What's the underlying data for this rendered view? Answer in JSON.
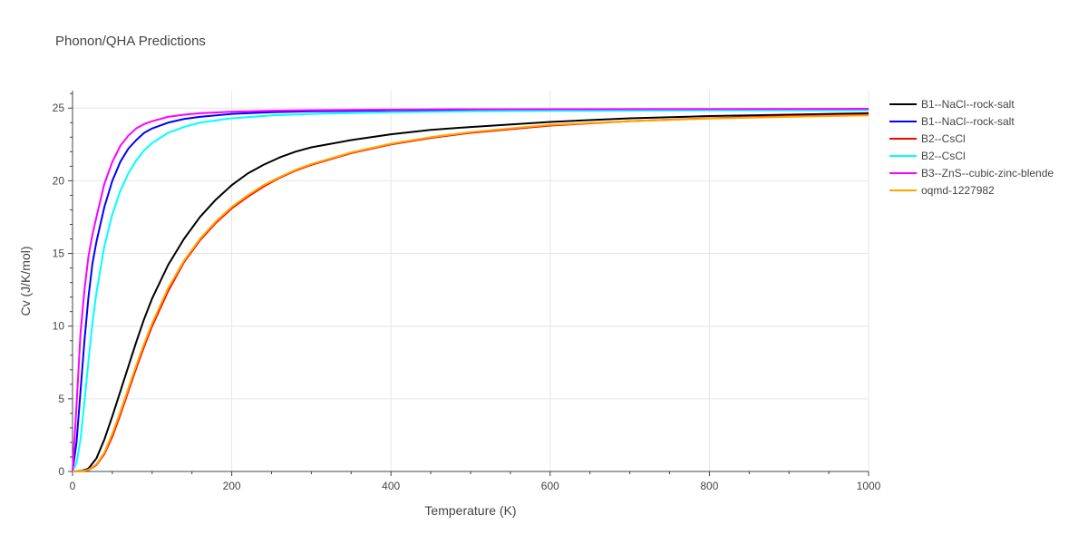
{
  "chart_data": {
    "type": "line",
    "title": "Phonon/QHA Predictions",
    "xlabel": "Temperature (K)",
    "ylabel": "Cv (J/K/mol)",
    "xlim": [
      0,
      1000
    ],
    "ylim": [
      0,
      26.2
    ],
    "xticks": [
      0,
      200,
      400,
      600,
      800,
      1000
    ],
    "yticks": [
      0,
      5,
      10,
      15,
      20,
      25
    ],
    "grid": true,
    "legend_position": "right",
    "series": [
      {
        "name": "B1--NaCl--rock-salt",
        "color": "#000000",
        "x": [
          0,
          10,
          20,
          30,
          40,
          50,
          60,
          70,
          80,
          90,
          100,
          120,
          140,
          160,
          180,
          200,
          220,
          240,
          260,
          280,
          300,
          350,
          400,
          450,
          500,
          600,
          700,
          800,
          900,
          1000
        ],
        "y": [
          0,
          0.02,
          0.2,
          0.9,
          2.2,
          3.8,
          5.5,
          7.2,
          8.9,
          10.5,
          11.9,
          14.2,
          16.0,
          17.5,
          18.7,
          19.7,
          20.5,
          21.1,
          21.6,
          22.0,
          22.3,
          22.8,
          23.2,
          23.5,
          23.7,
          24.05,
          24.3,
          24.45,
          24.55,
          24.65
        ]
      },
      {
        "name": "B1--NaCl--rock-salt",
        "color": "#0000ff",
        "x": [
          0,
          5,
          10,
          15,
          20,
          25,
          30,
          40,
          50,
          60,
          70,
          80,
          90,
          100,
          120,
          140,
          160,
          200,
          250,
          300,
          400,
          500,
          600,
          800,
          1000
        ],
        "y": [
          0,
          2.0,
          5.5,
          9.0,
          12.0,
          14.3,
          15.8,
          18.2,
          20.0,
          21.3,
          22.2,
          22.8,
          23.3,
          23.6,
          24.0,
          24.25,
          24.4,
          24.6,
          24.72,
          24.78,
          24.84,
          24.87,
          24.88,
          24.9,
          24.91
        ]
      },
      {
        "name": "B2--CsCl",
        "color": "#ff0000",
        "x": [
          0,
          10,
          20,
          30,
          40,
          50,
          60,
          70,
          80,
          90,
          100,
          120,
          140,
          160,
          180,
          200,
          220,
          240,
          260,
          280,
          300,
          350,
          400,
          450,
          500,
          600,
          700,
          800,
          900,
          1000
        ],
        "y": [
          0,
          0.01,
          0.1,
          0.45,
          1.2,
          2.4,
          3.9,
          5.5,
          7.1,
          8.6,
          10.0,
          12.4,
          14.4,
          15.9,
          17.1,
          18.1,
          18.9,
          19.6,
          20.2,
          20.7,
          21.1,
          21.9,
          22.5,
          22.95,
          23.3,
          23.8,
          24.1,
          24.3,
          24.45,
          24.55
        ]
      },
      {
        "name": "B2--CsCl",
        "color": "#00ffff",
        "x": [
          0,
          5,
          10,
          15,
          20,
          25,
          30,
          40,
          50,
          60,
          70,
          80,
          90,
          100,
          120,
          140,
          160,
          200,
          250,
          300,
          400,
          500,
          600,
          800,
          1000
        ],
        "y": [
          0,
          0.6,
          2.2,
          4.8,
          7.6,
          10.2,
          12.3,
          15.5,
          17.7,
          19.3,
          20.5,
          21.4,
          22.1,
          22.6,
          23.3,
          23.7,
          24.0,
          24.3,
          24.5,
          24.6,
          24.72,
          24.78,
          24.81,
          24.84,
          24.85
        ]
      },
      {
        "name": "B3--ZnS--cubic-zinc-blende",
        "color": "#ff00ff",
        "x": [
          0,
          5,
          10,
          15,
          20,
          25,
          30,
          40,
          50,
          60,
          70,
          80,
          90,
          100,
          120,
          140,
          160,
          200,
          250,
          300,
          400,
          500,
          600,
          800,
          1000
        ],
        "y": [
          0,
          4.5,
          9.5,
          12.5,
          14.8,
          16.3,
          17.5,
          19.8,
          21.3,
          22.4,
          23.1,
          23.6,
          23.9,
          24.1,
          24.4,
          24.55,
          24.65,
          24.75,
          24.82,
          24.86,
          24.9,
          24.92,
          24.93,
          24.94,
          24.95
        ]
      },
      {
        "name": "oqmd-1227982",
        "color": "#ffa500",
        "x": [
          0,
          10,
          20,
          30,
          40,
          50,
          60,
          70,
          80,
          90,
          100,
          120,
          140,
          160,
          180,
          200,
          220,
          240,
          260,
          280,
          300,
          350,
          400,
          450,
          500,
          600,
          700,
          800,
          900,
          1000
        ],
        "y": [
          0,
          0.01,
          0.12,
          0.5,
          1.3,
          2.6,
          4.1,
          5.7,
          7.3,
          8.8,
          10.2,
          12.6,
          14.5,
          16.0,
          17.2,
          18.2,
          19.0,
          19.7,
          20.25,
          20.75,
          21.15,
          21.95,
          22.55,
          23.0,
          23.35,
          23.85,
          24.1,
          24.28,
          24.4,
          24.5
        ]
      }
    ]
  }
}
